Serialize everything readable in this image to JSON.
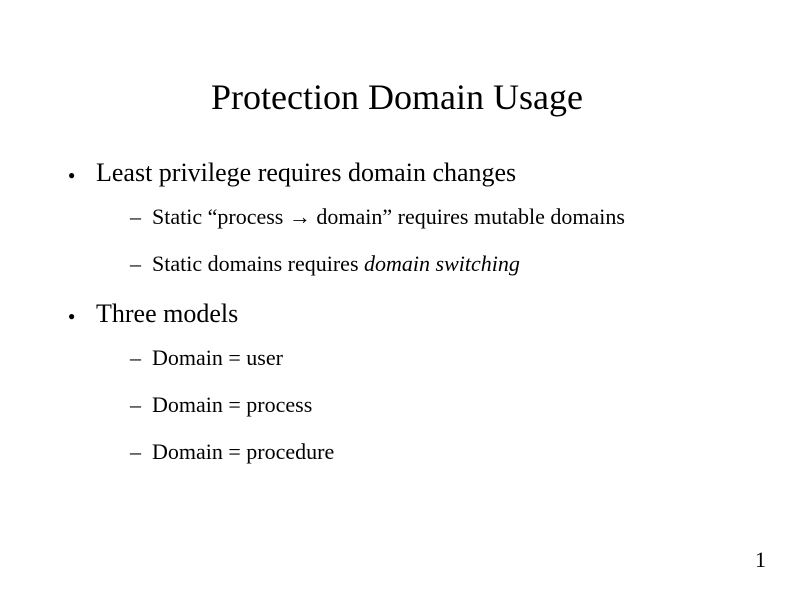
{
  "title": "Protection Domain Usage",
  "bullets": {
    "b1": {
      "text": "Least privilege requires domain changes",
      "sub": {
        "s1_prefix": "Static “process ",
        "s1_arrow": "→",
        "s1_suffix": " domain” requires mutable domains",
        "s2_prefix": "Static domains requires ",
        "s2_italic": "domain switching"
      }
    },
    "b2": {
      "text": "Three models",
      "sub": {
        "s1": "Domain = user",
        "s2": "Domain = process",
        "s3": "Domain = procedure"
      }
    }
  },
  "page_number": "1",
  "colors": {
    "text": "#000000",
    "bg": "#ffffff"
  },
  "fonts": {
    "family": "Times New Roman",
    "title_size_pt": 36,
    "body_size_pt": 26,
    "sub_size_pt": 22
  }
}
